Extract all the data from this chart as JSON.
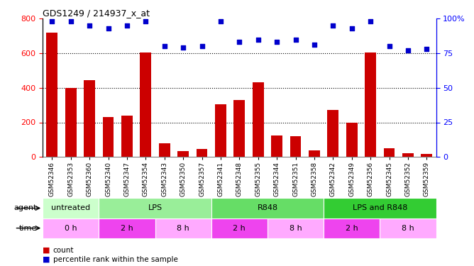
{
  "title": "GDS1249 / 214937_x_at",
  "samples": [
    "GSM52346",
    "GSM52353",
    "GSM52360",
    "GSM52340",
    "GSM52347",
    "GSM52354",
    "GSM52343",
    "GSM52350",
    "GSM52357",
    "GSM52341",
    "GSM52348",
    "GSM52355",
    "GSM52344",
    "GSM52351",
    "GSM52358",
    "GSM52342",
    "GSM52349",
    "GSM52356",
    "GSM52345",
    "GSM52352",
    "GSM52359"
  ],
  "counts": [
    720,
    400,
    445,
    230,
    237,
    605,
    80,
    35,
    45,
    305,
    330,
    430,
    125,
    120,
    38,
    270,
    200,
    605,
    50,
    20,
    18
  ],
  "percentiles": [
    98,
    98,
    95,
    93,
    95,
    98,
    80,
    79,
    80,
    98,
    83,
    85,
    83,
    85,
    81,
    95,
    93,
    98,
    80,
    77,
    78
  ],
  "bar_color": "#cc0000",
  "dot_color": "#0000cc",
  "ylim_left": [
    0,
    800
  ],
  "ylim_right": [
    0,
    100
  ],
  "yticks_left": [
    0,
    200,
    400,
    600,
    800
  ],
  "yticks_right": [
    0,
    25,
    50,
    75,
    100
  ],
  "grid_lines": [
    200,
    400,
    600
  ],
  "agent_colors": [
    "#ccffcc",
    "#99ee99",
    "#66dd66",
    "#33cc33"
  ],
  "agent_groups": [
    {
      "label": "untreated",
      "start": 0,
      "end": 3
    },
    {
      "label": "LPS",
      "start": 3,
      "end": 9
    },
    {
      "label": "R848",
      "start": 9,
      "end": 15
    },
    {
      "label": "LPS and R848",
      "start": 15,
      "end": 21
    }
  ],
  "time_colors": [
    "#ffaaff",
    "#ee44ee",
    "#ffaaff",
    "#ee44ee",
    "#ffaaff",
    "#ee44ee",
    "#ffaaff"
  ],
  "time_groups": [
    {
      "label": "0 h",
      "start": 0,
      "end": 3
    },
    {
      "label": "2 h",
      "start": 3,
      "end": 6
    },
    {
      "label": "8 h",
      "start": 6,
      "end": 9
    },
    {
      "label": "2 h",
      "start": 9,
      "end": 12
    },
    {
      "label": "8 h",
      "start": 12,
      "end": 15
    },
    {
      "label": "2 h",
      "start": 15,
      "end": 18
    },
    {
      "label": "8 h",
      "start": 18,
      "end": 21
    }
  ],
  "legend_count_color": "#cc0000",
  "legend_dot_color": "#0000cc"
}
